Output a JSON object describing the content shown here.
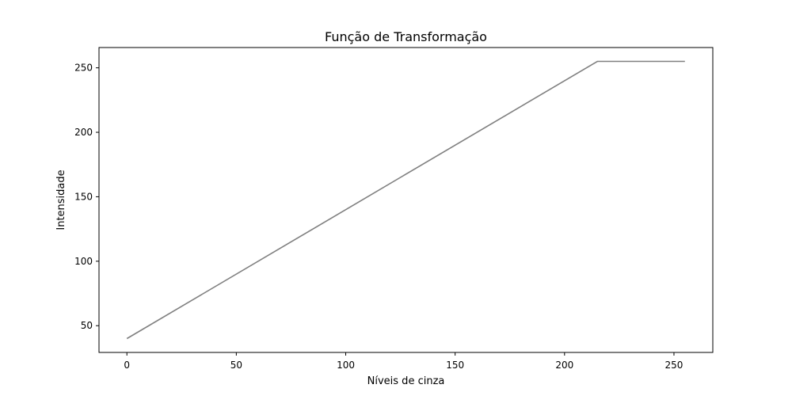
{
  "chart_data": {
    "type": "line",
    "title": "Função de Transformação",
    "xlabel": "Níveis de cinza",
    "ylabel": "Intensidade",
    "xlim": [
      -12.75,
      267.75
    ],
    "ylim": [
      29.25,
      265.75
    ],
    "xticks": [
      0,
      50,
      100,
      150,
      200,
      250
    ],
    "yticks": [
      50,
      100,
      150,
      200,
      250
    ],
    "grid": false,
    "series": [
      {
        "color": "#808080",
        "x": [
          0,
          215,
          255
        ],
        "y": [
          40,
          255,
          255
        ]
      }
    ]
  }
}
